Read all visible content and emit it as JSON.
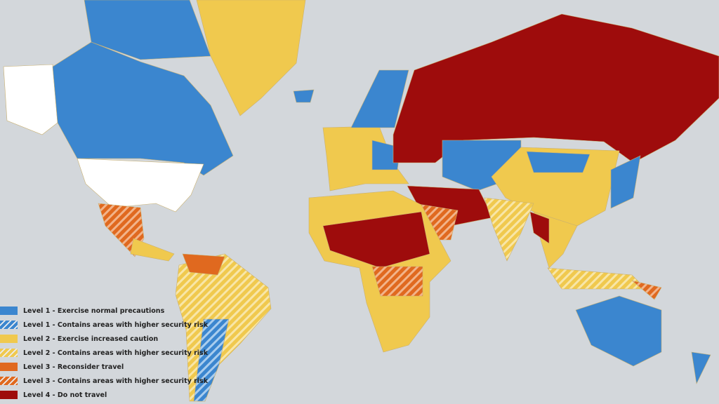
{
  "colors": {
    "ocean": "#d3d7db",
    "level1": "#3b86cf",
    "level2": "#f0c94e",
    "level3": "#e0691f",
    "level4": "#9e0c0c",
    "unrated": "#ffffff"
  },
  "legend": [
    {
      "label": "Level 1 - Exercise normal precautions",
      "level": "level1",
      "hatched": false
    },
    {
      "label": "Level 1 - Contains areas with higher security risk",
      "level": "level1",
      "hatched": true
    },
    {
      "label": "Level 2 - Exercise increased caution",
      "level": "level2",
      "hatched": false
    },
    {
      "label": "Level 2 - Contains areas with higher security risk",
      "level": "level2",
      "hatched": true
    },
    {
      "label": "Level 3 - Reconsider travel",
      "level": "level3",
      "hatched": false
    },
    {
      "label": "Level 3 - Contains areas with higher security risk",
      "level": "level3",
      "hatched": true
    },
    {
      "label": "Level 4 - Do not travel",
      "level": "level4",
      "hatched": false
    }
  ]
}
